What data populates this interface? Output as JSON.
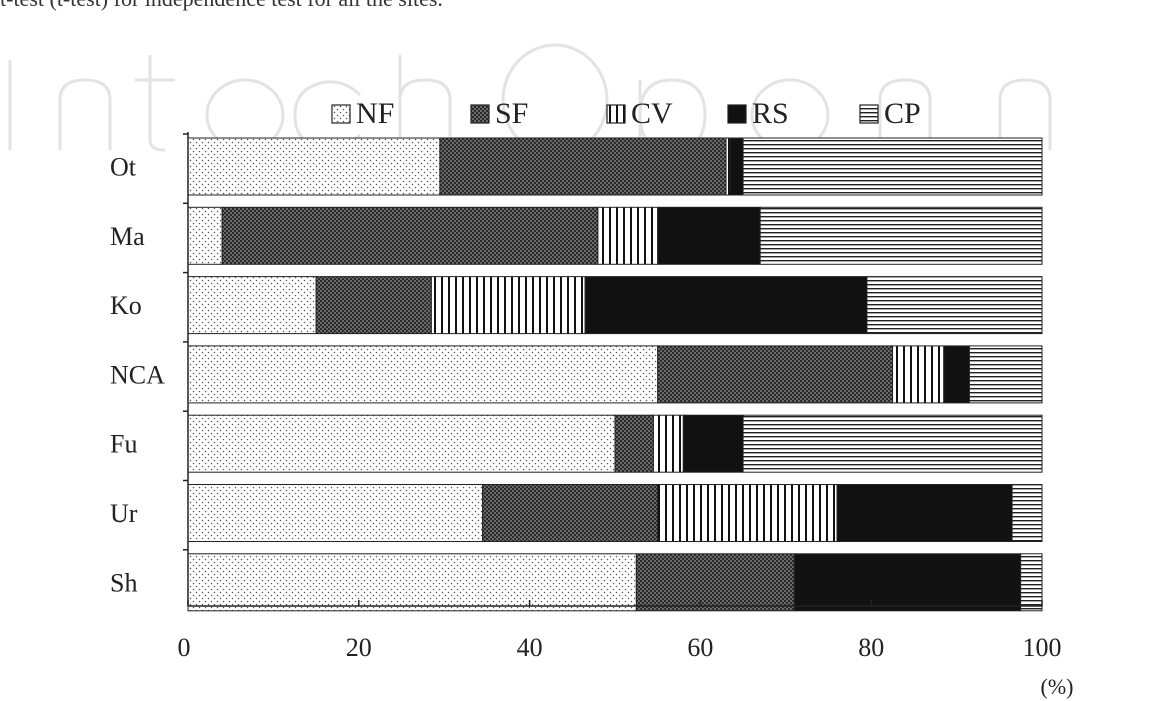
{
  "top_text": "t-test (t-test) for independence test for all the sites.",
  "watermark_text": "IntechOpen",
  "chart_data": {
    "type": "bar",
    "orientation": "horizontal",
    "stacked": true,
    "categories": [
      "Ot",
      "Ma",
      "Ko",
      "NCA",
      "Fu",
      "Ur",
      "Sh"
    ],
    "series": [
      {
        "name": "NF",
        "pattern": "dots",
        "values": [
          29.5,
          4,
          15,
          55,
          50,
          34.5,
          52.5
        ]
      },
      {
        "name": "SF",
        "pattern": "crosshatch",
        "values": [
          33.5,
          44,
          13.5,
          27.5,
          4.5,
          20.5,
          18.5
        ]
      },
      {
        "name": "CV",
        "pattern": "vertical",
        "values": [
          0.5,
          7,
          18,
          6,
          3.5,
          21,
          0
        ]
      },
      {
        "name": "RS",
        "pattern": "solid",
        "values": [
          1.5,
          12,
          33,
          3,
          7,
          20.5,
          26.5
        ]
      },
      {
        "name": "CP",
        "pattern": "horizontal",
        "values": [
          35,
          33,
          20.5,
          8.5,
          35,
          3.5,
          2.5
        ]
      }
    ],
    "xlim": [
      0,
      100
    ],
    "x_ticks": [
      "0",
      "20",
      "40",
      "60",
      "80",
      "100"
    ],
    "x_unit": "(%)",
    "legend_position": "top",
    "grid": false
  }
}
